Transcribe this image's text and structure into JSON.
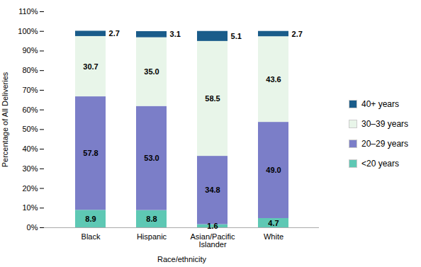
{
  "chart_data": {
    "type": "bar",
    "stacked": true,
    "categories": [
      "Black",
      "Hispanic",
      "Asian/Pacific\nIslander",
      "White"
    ],
    "series": [
      {
        "name": "<20 years",
        "color": "#5ec8b4",
        "values": [
          8.9,
          8.8,
          1.6,
          4.7
        ],
        "value_labels": [
          "8.9",
          "8.8",
          "1.6",
          "4.7"
        ]
      },
      {
        "name": "20–29 years",
        "color": "#7b7ec8",
        "values": [
          57.8,
          53.0,
          34.8,
          49.0
        ],
        "value_labels": [
          "57.8",
          "53.0",
          "34.8",
          "49.0"
        ]
      },
      {
        "name": "30–39 years",
        "color": "#e8f5e9",
        "values": [
          30.7,
          35.0,
          58.5,
          43.6
        ],
        "value_labels": [
          "30.7",
          "35.0",
          "58.5",
          "43.6"
        ]
      },
      {
        "name": "40+ years",
        "color": "#1a5c8a",
        "values": [
          2.7,
          3.1,
          5.1,
          2.7
        ],
        "value_labels": [
          "2.7",
          "3.1",
          "5.1",
          "2.7"
        ]
      }
    ],
    "xlabel": "Race/ethnicity",
    "ylabel": "Percentage of All Deliveries",
    "ylim": [
      0,
      110
    ],
    "yticks": [
      {
        "value": 0,
        "label": "0%"
      },
      {
        "value": 10,
        "label": "10%"
      },
      {
        "value": 20,
        "label": "20%"
      },
      {
        "value": 30,
        "label": "30%"
      },
      {
        "value": 40,
        "label": "40%"
      },
      {
        "value": 50,
        "label": "50%"
      },
      {
        "value": 60,
        "label": "60%"
      },
      {
        "value": 70,
        "label": "70%"
      },
      {
        "value": 80,
        "label": "80%"
      },
      {
        "value": 90,
        "label": "90%"
      },
      {
        "value": 100,
        "label": "100%"
      },
      {
        "value": 110,
        "label": "110%"
      }
    ],
    "data_labels": true,
    "legend": "right",
    "grid": false
  }
}
